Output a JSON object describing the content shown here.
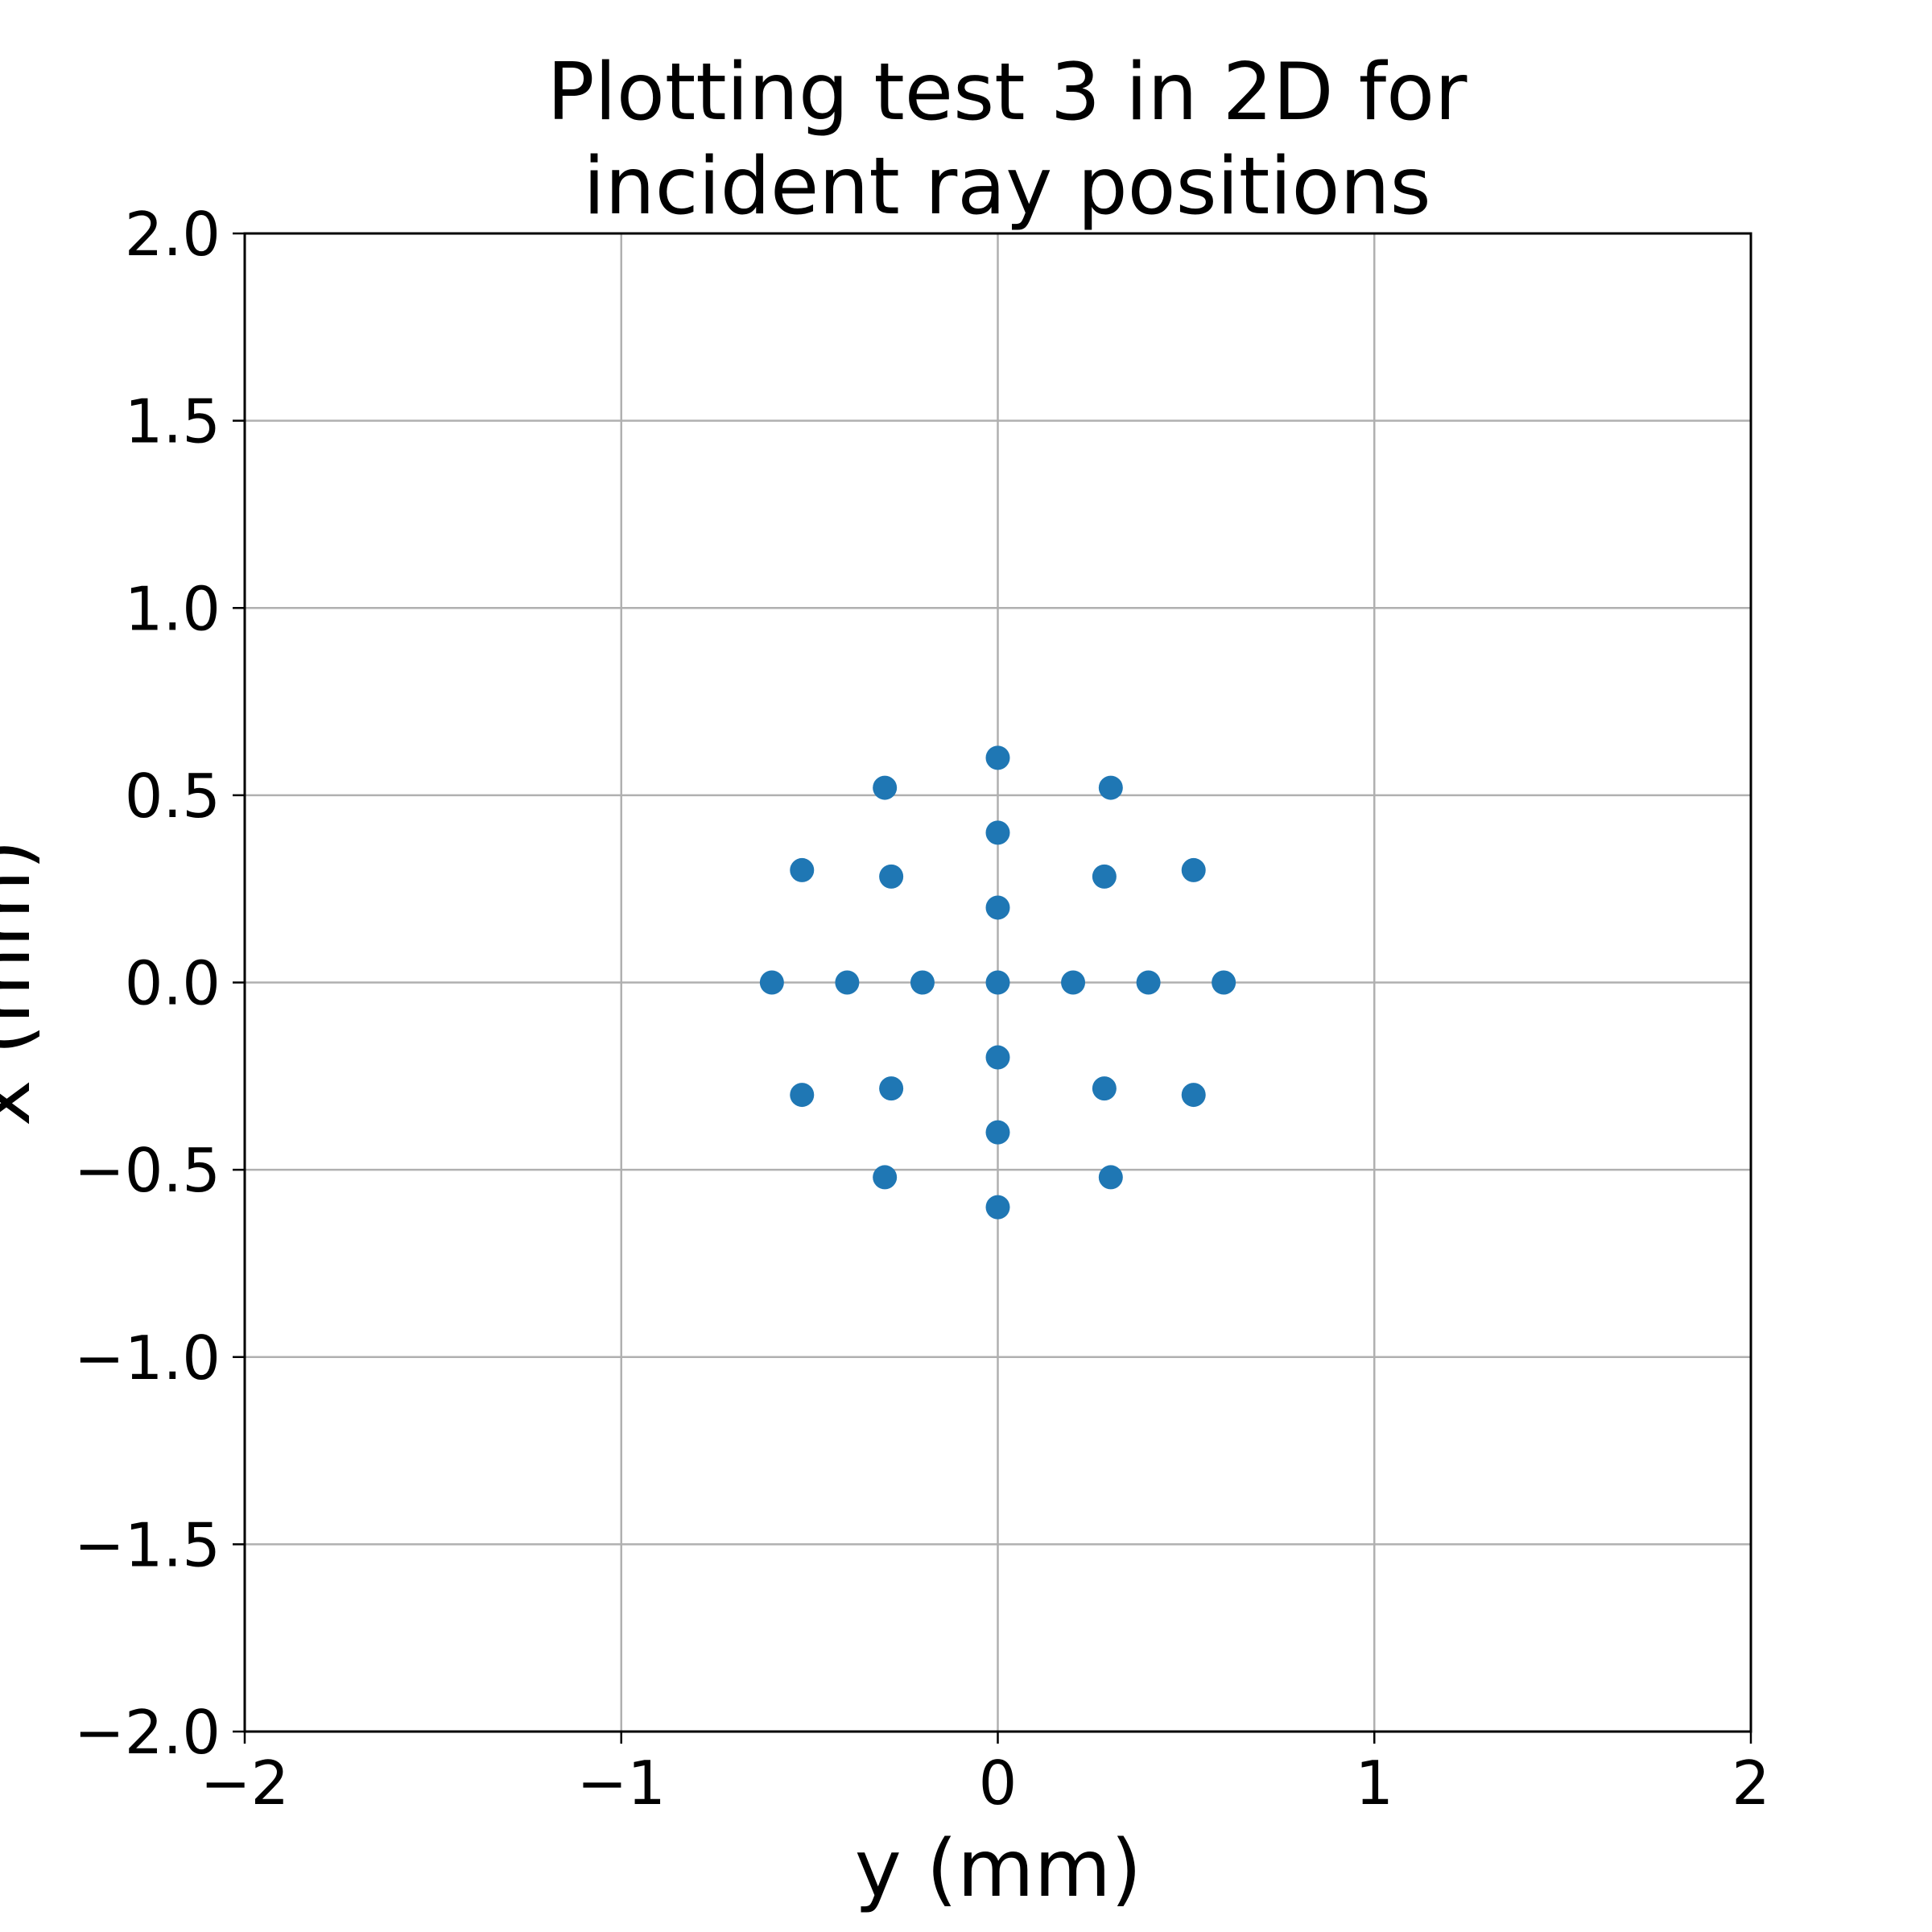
{
  "chart_data": {
    "type": "scatter",
    "title_lines": [
      "Plotting test 3 in 2D for",
      "incident ray positions"
    ],
    "xlabel": "y (mm)",
    "ylabel": "x (mm)",
    "xlim": [
      -2,
      2
    ],
    "ylim": [
      -2,
      2
    ],
    "xticks": [
      -2,
      -1,
      0,
      1,
      2
    ],
    "yticks": [
      -2.0,
      -1.5,
      -1.0,
      -0.5,
      0.0,
      0.5,
      1.0,
      1.5,
      2.0
    ],
    "xtick_labels": [
      "−2",
      "−1",
      "0",
      "1",
      "2"
    ],
    "ytick_labels": [
      "−2.0",
      "−1.5",
      "−1.0",
      "−0.5",
      "0.0",
      "0.5",
      "1.0",
      "1.5",
      "2.0"
    ],
    "grid": true,
    "marker_color": "#1f77b4",
    "points": [
      {
        "x": 0.0,
        "y": 0.0
      },
      {
        "x": 0.2,
        "y": 0.0
      },
      {
        "x": 0.0,
        "y": 0.2
      },
      {
        "x": -0.2,
        "y": 0.0
      },
      {
        "x": 0.0,
        "y": -0.2
      },
      {
        "x": 0.4,
        "y": 0.0
      },
      {
        "x": 0.283,
        "y": 0.283
      },
      {
        "x": 0.0,
        "y": 0.4
      },
      {
        "x": -0.283,
        "y": 0.283
      },
      {
        "x": -0.4,
        "y": 0.0
      },
      {
        "x": -0.283,
        "y": -0.283
      },
      {
        "x": 0.0,
        "y": -0.4
      },
      {
        "x": 0.283,
        "y": -0.283
      },
      {
        "x": 0.6,
        "y": 0.0
      },
      {
        "x": 0.52,
        "y": 0.3
      },
      {
        "x": 0.3,
        "y": 0.52
      },
      {
        "x": 0.0,
        "y": 0.6
      },
      {
        "x": -0.3,
        "y": 0.52
      },
      {
        "x": -0.52,
        "y": 0.3
      },
      {
        "x": -0.6,
        "y": 0.0
      },
      {
        "x": -0.52,
        "y": -0.3
      },
      {
        "x": -0.3,
        "y": -0.52
      },
      {
        "x": 0.0,
        "y": -0.6
      },
      {
        "x": 0.3,
        "y": -0.52
      },
      {
        "x": 0.52,
        "y": -0.3
      }
    ]
  }
}
